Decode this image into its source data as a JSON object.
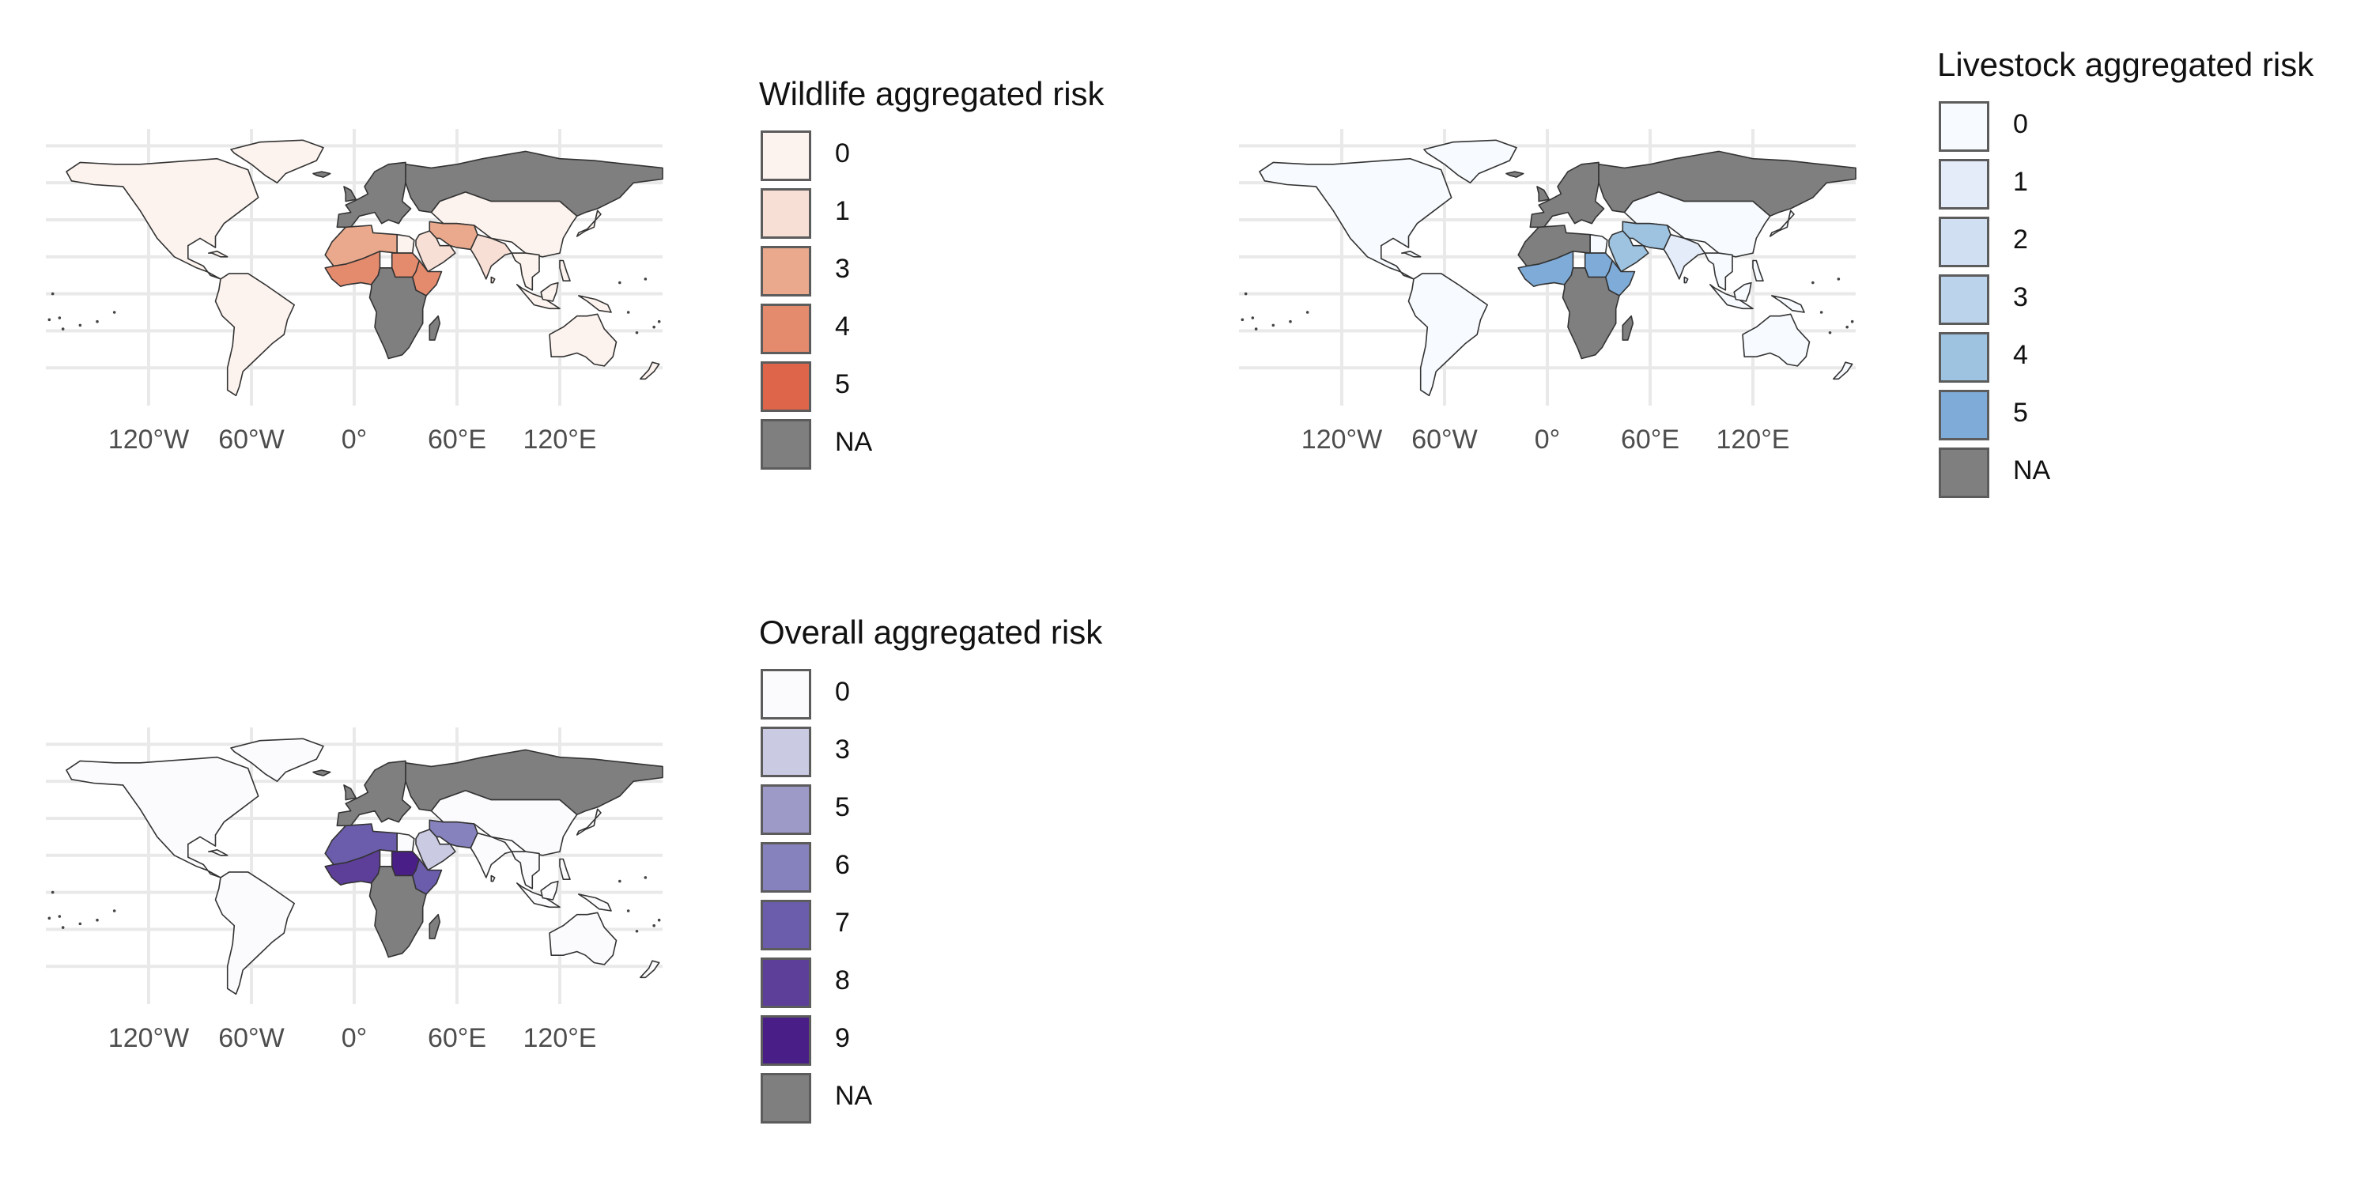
{
  "axis": {
    "x_ticks": [
      "120°W",
      "60°W",
      "0°",
      "60°E",
      "120°E"
    ],
    "x_tick_values": [
      -120,
      -60,
      0,
      60,
      120
    ]
  },
  "colors": {
    "na": "#7f7f7f",
    "grid": "#e9e9e9",
    "border": "#333333"
  },
  "panels": [
    {
      "id": "wildlife",
      "legend": {
        "title": "Wildlife aggregated risk",
        "keys": [
          {
            "label": "0",
            "color": "#fdf3ee"
          },
          {
            "label": "1",
            "color": "#f7dfd6"
          },
          {
            "label": "3",
            "color": "#eaa98c"
          },
          {
            "label": "4",
            "color": "#e48a6d"
          },
          {
            "label": "5",
            "color": "#de6549"
          },
          {
            "label": "NA",
            "color": "#7f7f7f"
          }
        ]
      },
      "regions": {
        "americas": "0",
        "greenland": "0",
        "europe": "NA",
        "russia": "NA",
        "asia_east": "0",
        "india": "1",
        "se_asia": "0",
        "australia": "0",
        "africa_central_south": "NA",
        "west_africa": "4",
        "north_africa_west": "3",
        "egypt": "0",
        "sudan": "4",
        "horn_of_africa": "4",
        "arabia": "1",
        "iran_pak": "3"
      }
    },
    {
      "id": "livestock",
      "legend": {
        "title": "Livestock aggregated risk",
        "keys": [
          {
            "label": "0",
            "color": "#f7fbff"
          },
          {
            "label": "1",
            "color": "#e3ecf8"
          },
          {
            "label": "2",
            "color": "#d0e0f2"
          },
          {
            "label": "3",
            "color": "#bbd4ec"
          },
          {
            "label": "4",
            "color": "#9ec3e0"
          },
          {
            "label": "5",
            "color": "#7eabd7"
          },
          {
            "label": "NA",
            "color": "#7f7f7f"
          }
        ]
      },
      "regions": {
        "americas": "0",
        "greenland": "0",
        "europe": "NA",
        "russia": "NA",
        "asia_east": "0",
        "india": "1",
        "se_asia": "0",
        "australia": "0",
        "africa_central_south": "NA",
        "west_africa": "5",
        "north_africa_west": "NA",
        "egypt": "0",
        "sudan": "5",
        "horn_of_africa": "5",
        "arabia": "4",
        "iran_pak": "4"
      }
    },
    {
      "id": "overall",
      "legend": {
        "title": "Overall aggregated risk",
        "keys": [
          {
            "label": "0",
            "color": "#fbfbfd"
          },
          {
            "label": "3",
            "color": "#cacbe2"
          },
          {
            "label": "5",
            "color": "#9e9ac8"
          },
          {
            "label": "6",
            "color": "#8682bd"
          },
          {
            "label": "7",
            "color": "#6b5dac"
          },
          {
            "label": "8",
            "color": "#5d3f9a"
          },
          {
            "label": "9",
            "color": "#4a1e87"
          },
          {
            "label": "NA",
            "color": "#7f7f7f"
          }
        ]
      },
      "regions": {
        "americas": "0",
        "greenland": "0",
        "europe": "NA",
        "russia": "NA",
        "asia_east": "0",
        "india": "0",
        "se_asia": "0",
        "australia": "0",
        "africa_central_south": "NA",
        "west_africa": "8",
        "north_africa_west": "7",
        "egypt": "0",
        "sudan": "9",
        "horn_of_africa": "7",
        "arabia": "3",
        "iran_pak": "6"
      }
    }
  ]
}
